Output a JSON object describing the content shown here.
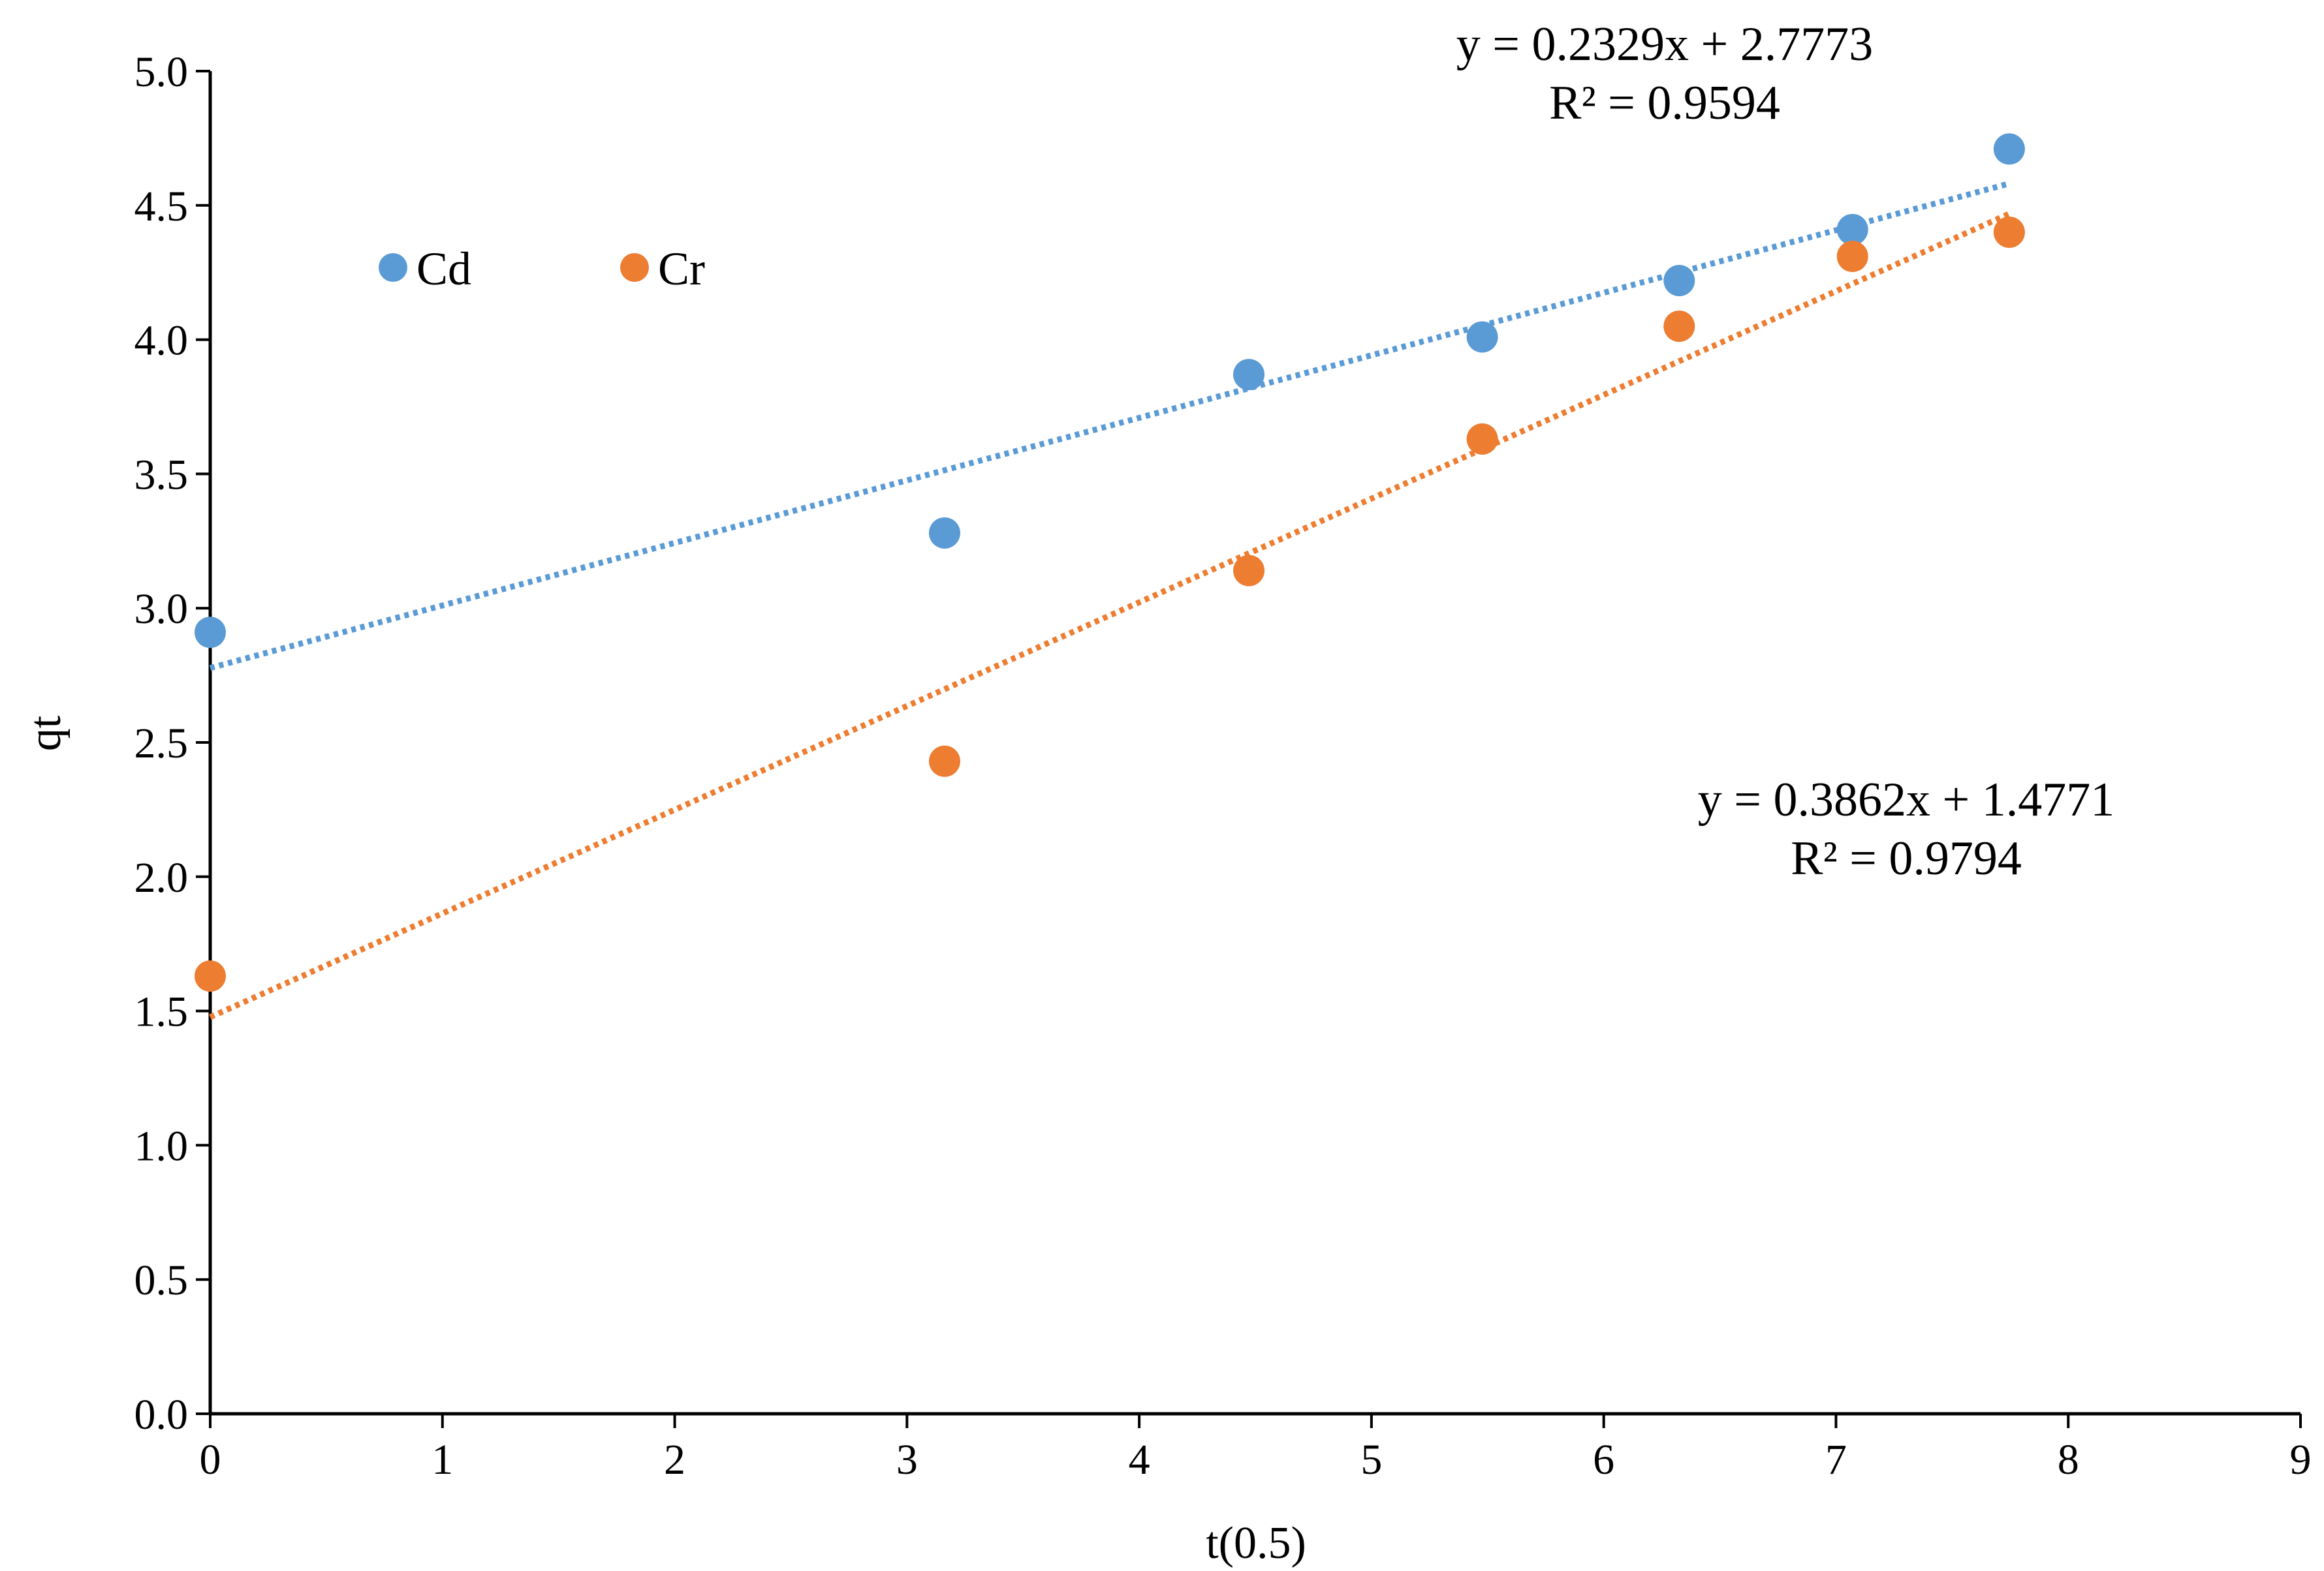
{
  "chart_data": {
    "type": "scatter",
    "title": "",
    "xlabel": "t(0.5)",
    "ylabel": "qt",
    "xlim": [
      0,
      9
    ],
    "ylim": [
      0,
      5
    ],
    "x_ticks": [
      "0",
      "1",
      "2",
      "3",
      "4",
      "5",
      "6",
      "7",
      "8",
      "9"
    ],
    "y_ticks": [
      "0.0",
      "0.5",
      "1.0",
      "1.5",
      "2.0",
      "2.5",
      "3.0",
      "3.5",
      "4.0",
      "4.5",
      "5.0"
    ],
    "grid": false,
    "legend_position": "top-left",
    "series": [
      {
        "name": "Cd",
        "color": "#5b9bd5",
        "x": [
          0,
          3.162,
          4.472,
          5.477,
          6.325,
          7.071,
          7.746
        ],
        "y": [
          2.91,
          3.28,
          3.87,
          4.01,
          4.22,
          4.41,
          4.71
        ],
        "trendline": {
          "slope": 0.2329,
          "intercept": 2.7773,
          "equation": "y = 0.2329x + 2.7773",
          "r2": "R² = 0.9594"
        }
      },
      {
        "name": "Cr",
        "color": "#ed7d31",
        "x": [
          0,
          3.162,
          4.472,
          5.477,
          6.325,
          7.071,
          7.746
        ],
        "y": [
          1.63,
          2.43,
          3.14,
          3.63,
          4.05,
          4.31,
          4.4
        ],
        "trendline": {
          "slope": 0.3862,
          "intercept": 1.4771,
          "equation": "y = 0.3862x + 1.4771",
          "r2": "R² = 0.9794"
        }
      }
    ]
  }
}
